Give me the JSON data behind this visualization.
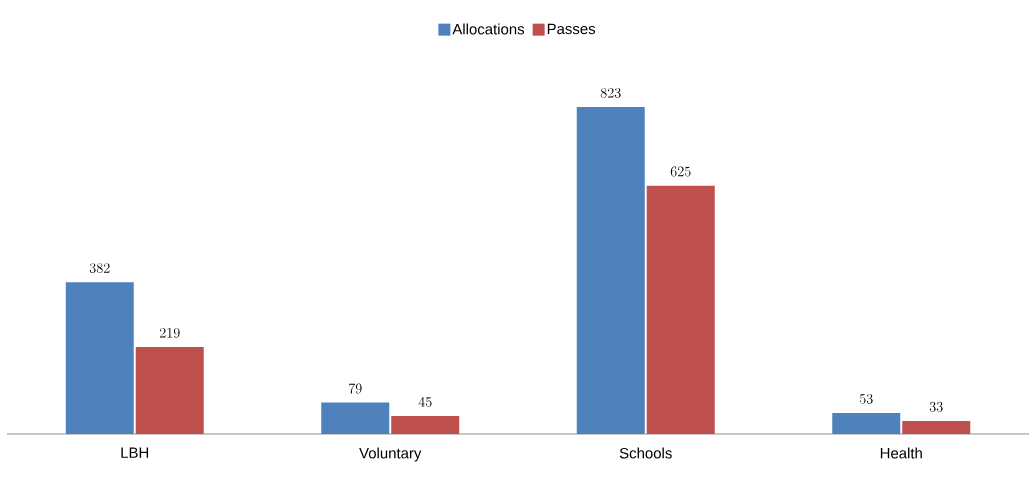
{
  "chart_data": {
    "type": "bar",
    "categories": [
      "LBH",
      "Voluntary",
      "Schools",
      "Health"
    ],
    "series": [
      {
        "name": "Allocations",
        "color": "#4f81bd",
        "values": [
          382,
          79,
          823,
          53
        ]
      },
      {
        "name": "Passes",
        "color": "#c0504d",
        "values": [
          219,
          45,
          625,
          33
        ]
      }
    ],
    "data_labels": true,
    "legend": "top"
  }
}
